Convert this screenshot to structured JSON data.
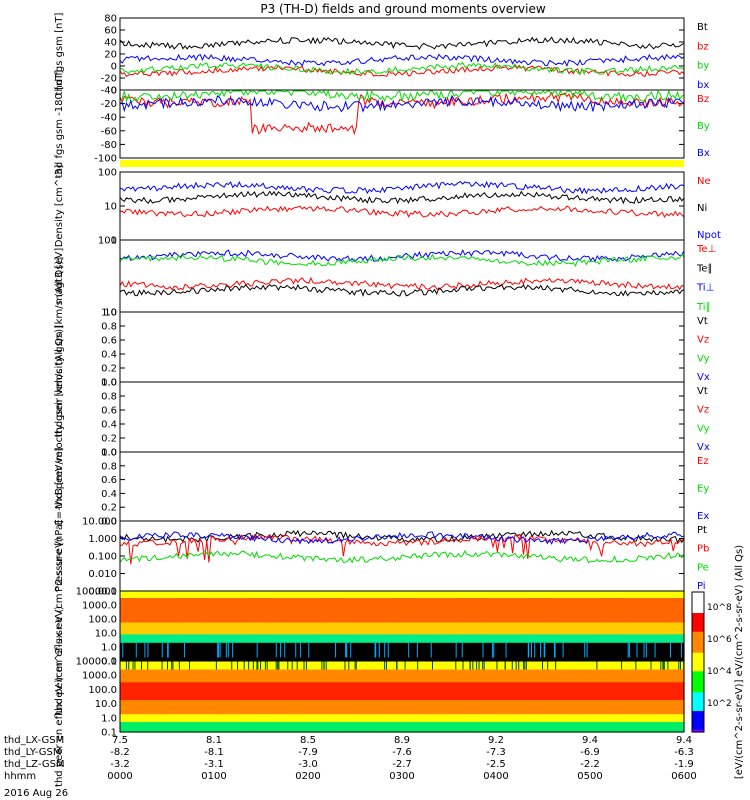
{
  "title": "P3 (TH-D) fields and ground moments overview",
  "date": "2016 Aug 26",
  "colors": {
    "black": "#000000",
    "red": "#ff0000",
    "green": "#00dd00",
    "blue": "#0000ff",
    "yellow": "#ffff00"
  },
  "chart_data": [
    {
      "type": "line",
      "ylabel": "thd fgs gsm [nT]",
      "ylim": [
        -40,
        80
      ],
      "yticks": [
        "80",
        "60",
        "40",
        "20",
        "0",
        "-20",
        "-40"
      ],
      "series": [
        {
          "name": "Bt",
          "color": "#000000",
          "level": 38
        },
        {
          "name": "bz",
          "color": "#ff0000",
          "level": -8
        },
        {
          "name": "by",
          "color": "#00dd00",
          "level": -4
        },
        {
          "name": "bx",
          "color": "#0000ff",
          "level": 10
        }
      ]
    },
    {
      "type": "line",
      "ylabel": "thd fgs gsm -180 [nT]",
      "ylim": [
        -100,
        0
      ],
      "yticks": [
        "0",
        "-20",
        "-40",
        "-60",
        "-80",
        "-100"
      ],
      "series": [
        {
          "name": "Bz",
          "color": "#ff0000",
          "level": -15
        },
        {
          "name": "By",
          "color": "#00dd00",
          "level": -5
        },
        {
          "name": "Bx",
          "color": "#0000ff",
          "level": -20
        }
      ]
    },
    {
      "type": "bar",
      "ylabel": "",
      "color": "#ffff00"
    },
    {
      "type": "line",
      "ylabel": "Density [cm^-3]",
      "scale": "log",
      "ylim": [
        1,
        100
      ],
      "yticks": [
        "100",
        "10",
        "1"
      ],
      "series": [
        {
          "name": "Ne",
          "color": "#ff0000",
          "level": 7
        },
        {
          "name": "Ni",
          "color": "#000000",
          "level": 18
        },
        {
          "name": "Npot",
          "color": "#0000ff",
          "level": 35
        }
      ]
    },
    {
      "type": "line",
      "ylabel": "magt3 [eV]",
      "scale": "log",
      "ylim": [
        10,
        2000
      ],
      "yticks": [
        "100",
        "10"
      ],
      "series": [
        {
          "name": "Te⊥",
          "color": "#ff0000",
          "level": 80
        },
        {
          "name": "Te∥",
          "color": "#000000",
          "level": 50
        },
        {
          "name": "Ti⊥",
          "color": "#0000ff",
          "level": 620
        },
        {
          "name": "Ti∥",
          "color": "#00dd00",
          "level": 450
        }
      ]
    },
    {
      "type": "line",
      "ylabel": "thd peir velocity gsm [km/s (All Qs)]",
      "ylim": [
        0,
        1
      ],
      "yticks": [
        "1.0",
        "0.8",
        "0.6",
        "0.4",
        "0.2",
        "0.0"
      ],
      "series": [
        {
          "name": "Vt",
          "color": "#000000"
        },
        {
          "name": "Vz",
          "color": "#ff0000"
        },
        {
          "name": "Vy",
          "color": "#00dd00"
        },
        {
          "name": "Vx",
          "color": "#0000ff"
        }
      ]
    },
    {
      "type": "line",
      "ylabel": "thd peer velocity gsm [km/s (All Qs)]",
      "ylim": [
        0,
        1
      ],
      "yticks": [
        "1.0",
        "0.8",
        "0.6",
        "0.4",
        "0.2",
        "0.0"
      ],
      "series": [
        {
          "name": "Vt",
          "color": "#000000"
        },
        {
          "name": "Vz",
          "color": "#ff0000"
        },
        {
          "name": "Vy",
          "color": "#00dd00"
        },
        {
          "name": "Vx",
          "color": "#0000ff"
        }
      ]
    },
    {
      "type": "line",
      "ylabel": "E=-VxB [mV/m]",
      "ylim": [
        0,
        1
      ],
      "yticks": [
        "1.0",
        "0.8",
        "0.6",
        "0.4",
        "0.2",
        "0.0"
      ],
      "series": [
        {
          "name": "Ez",
          "color": "#ff0000"
        },
        {
          "name": "Ey",
          "color": "#00dd00"
        },
        {
          "name": "Ex",
          "color": "#0000ff"
        }
      ]
    },
    {
      "type": "line",
      "ylabel": "Pressure [nPa]",
      "scale": "log",
      "ylim": [
        0.001,
        10
      ],
      "yticks": [
        "10.000",
        "1.000",
        "0.100",
        "0.010",
        "0.001"
      ],
      "series": [
        {
          "name": "Pt",
          "color": "#000000",
          "level": 1.3
        },
        {
          "name": "Pb",
          "color": "#ff0000",
          "level": 0.8
        },
        {
          "name": "Pe",
          "color": "#00dd00",
          "level": 0.09
        },
        {
          "name": "Pi",
          "color": "#0000ff",
          "level": 1.1
        }
      ]
    },
    {
      "type": "heatmap",
      "ylabel": "thd peir en eflux eV (cm^2-s-sr-eV)",
      "yticks": [
        "10000.0",
        "1000.0",
        "100.0",
        "10.0",
        "1.0",
        "0.1"
      ]
    },
    {
      "type": "heatmap",
      "ylabel": "thd peer en eflux eV (cm^2-s-sr-eV)",
      "yticks": [
        "10000.0",
        "1000.0",
        "100.0",
        "10.0",
        "1.0",
        "0.1"
      ]
    }
  ],
  "colorbar": {
    "label": "[eV/(cm^2-s-sr-eV)] eV/(cm^2-s-sr-eV) (All Qs)",
    "ticks": [
      "10^8",
      "10^6",
      "10^4",
      "10^2"
    ]
  },
  "xaxis": {
    "rows": [
      {
        "label": "thd_LX-GSM",
        "values": [
          "7.5",
          "8.1",
          "8.5",
          "8.9",
          "9.2",
          "9.4",
          "9.4"
        ]
      },
      {
        "label": "thd_LY-GSM",
        "values": [
          "-8.2",
          "-8.1",
          "-7.9",
          "-7.6",
          "-7.3",
          "-6.9",
          "-6.3"
        ]
      },
      {
        "label": "thd_LZ-GSM",
        "values": [
          "-3.2",
          "-3.1",
          "-3.0",
          "-2.7",
          "-2.5",
          "-2.2",
          "-1.9"
        ]
      },
      {
        "label": "hhmm",
        "values": [
          "0000",
          "0100",
          "0200",
          "0300",
          "0400",
          "0500",
          "0600"
        ]
      }
    ]
  }
}
